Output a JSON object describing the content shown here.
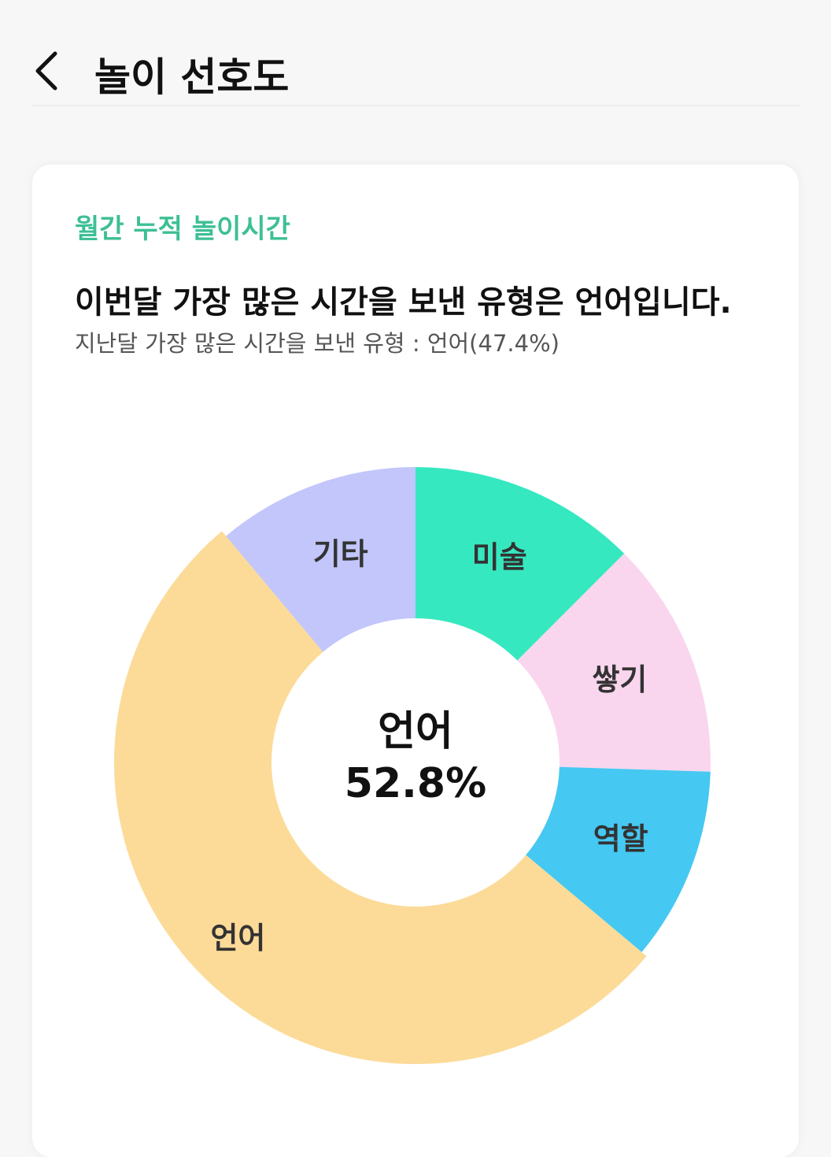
{
  "header": {
    "title": "놀이 선호도"
  },
  "card": {
    "subtitle": "월간 누적 놀이시간",
    "headline": "이번달 가장 많은 시간을 보낸 유형은 언어입니다.",
    "note": "지난달 가장 많은 시간을 보낸 유형 : 언어(47.4%)"
  },
  "chart_data": {
    "type": "donut",
    "categories": [
      "미술",
      "쌓기",
      "역할",
      "언어",
      "기타"
    ],
    "values": [
      12.5,
      13.0,
      10.6,
      52.8,
      11.1
    ],
    "colors": [
      "#36e8c0",
      "#f9d6ee",
      "#45c8f2",
      "#fcdb98",
      "#c2c6fb"
    ],
    "center_label": "언어",
    "center_value_label": "52.8%"
  }
}
